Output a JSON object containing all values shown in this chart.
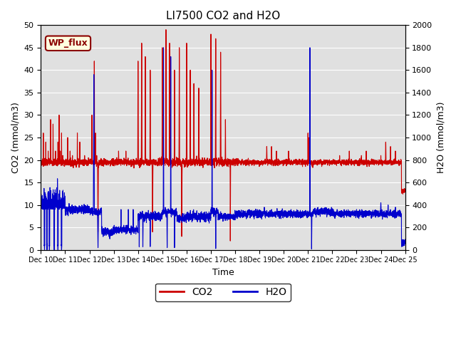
{
  "title": "LI7500 CO2 and H2O",
  "xlabel": "Time",
  "ylabel_left": "CO2 (mmol/m3)",
  "ylabel_right": "H2O (mmol/m3)",
  "ylim_left": [
    0,
    50
  ],
  "ylim_right": [
    0,
    2000
  ],
  "yticks_left": [
    0,
    5,
    10,
    15,
    20,
    25,
    30,
    35,
    40,
    45,
    50
  ],
  "yticks_right": [
    0,
    200,
    400,
    600,
    800,
    1000,
    1200,
    1400,
    1600,
    1800,
    2000
  ],
  "xtick_labels": [
    "Dec 10",
    "Dec 11",
    "Dec 12",
    "Dec 13",
    "Dec 14",
    "Dec 15",
    "Dec 16",
    "Dec 17",
    "Dec 18",
    "Dec 19",
    "Dec 20",
    "Dec 21",
    "Dec 22",
    "Dec 23",
    "Dec 24",
    "Dec 25"
  ],
  "watermark": "WP_flux",
  "co2_color": "#cc0000",
  "h2o_color": "#0000cc",
  "bg_color": "#e0e0e0",
  "legend_co2": "CO2",
  "legend_h2o": "H2O",
  "linewidth": 0.8
}
